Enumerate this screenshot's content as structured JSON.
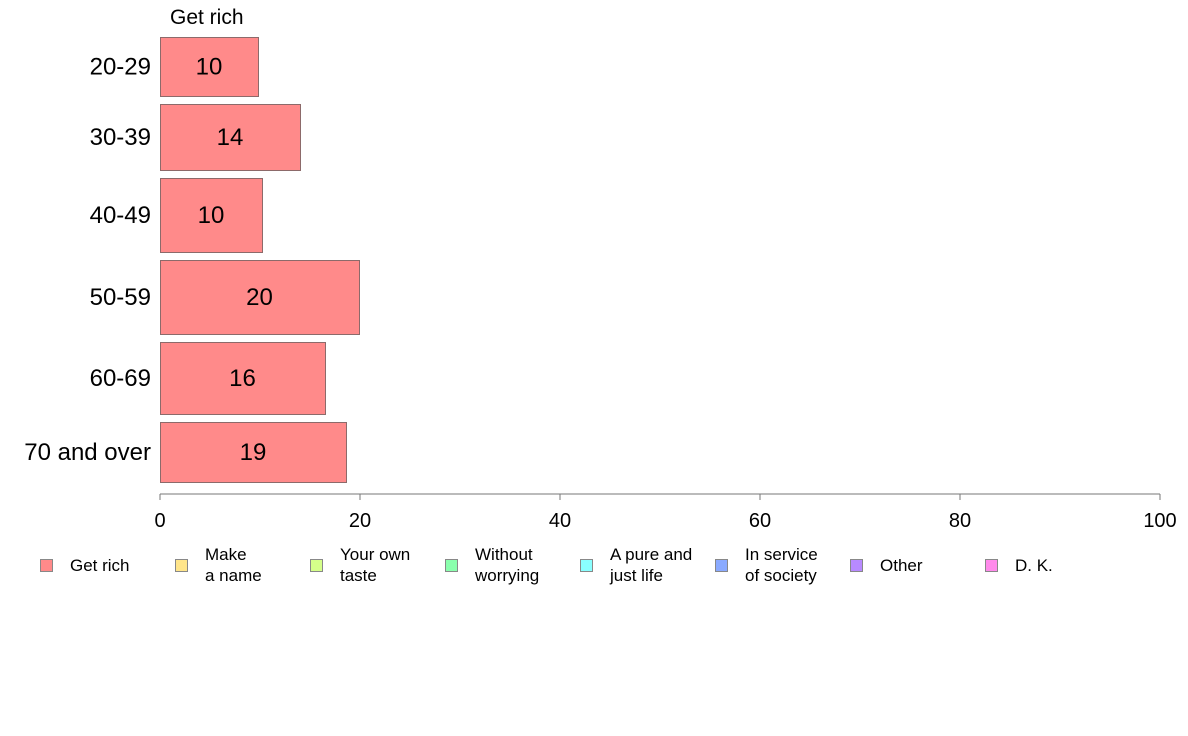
{
  "chart_data": {
    "type": "bar",
    "orientation": "horizontal",
    "series_title": "Get rich",
    "categories": [
      "20-29",
      "30-39",
      "40-49",
      "50-59",
      "60-69",
      "70 and over"
    ],
    "series": [
      {
        "name": "Get rich",
        "values": [
          9.8,
          14,
          10.2,
          19.9,
          16.5,
          18.6
        ],
        "labels": [
          "10",
          "14",
          "10",
          "20",
          "16",
          "19"
        ]
      }
    ],
    "xlim": [
      0,
      100
    ],
    "xticks": [
      0,
      20,
      40,
      60,
      80,
      100
    ],
    "grid": false,
    "legend_position": "bottom",
    "bar_color": "#ff8a8a",
    "legend": [
      {
        "label": "Get rich",
        "color": "#ff8a8a"
      },
      {
        "label": "Make\na name",
        "color": "#ffe58a"
      },
      {
        "label": "Your own\ntaste",
        "color": "#d5ff8a"
      },
      {
        "label": "Without\nworrying",
        "color": "#8affad"
      },
      {
        "label": "A pure and\njust life",
        "color": "#8affff"
      },
      {
        "label": "In service\nof society",
        "color": "#8aaaff"
      },
      {
        "label": "Other",
        "color": "#b88aff"
      },
      {
        "label": "D. K.",
        "color": "#ff8aeb"
      }
    ]
  }
}
